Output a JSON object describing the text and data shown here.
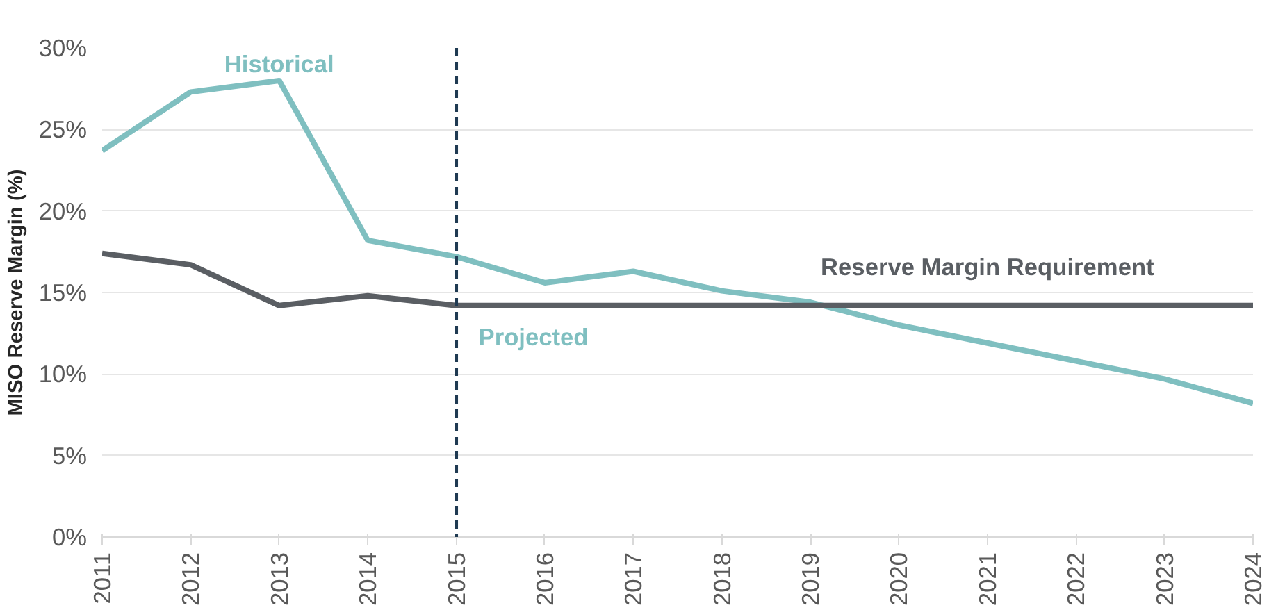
{
  "chart_data": {
    "type": "line",
    "ylabel": "MISO Reserve Margin (%)",
    "x": [
      2011,
      2012,
      2013,
      2014,
      2015,
      2016,
      2017,
      2018,
      2019,
      2020,
      2021,
      2022,
      2023,
      2024
    ],
    "series": [
      {
        "color": "#7fbfc0",
        "values": [
          23.7,
          27.3,
          28.0,
          18.2,
          17.2,
          15.6,
          16.3,
          15.1,
          14.4,
          13.0,
          11.9,
          10.8,
          9.7,
          8.2
        ]
      },
      {
        "name": "Reserve Margin Requirement",
        "color": "#5a5e63",
        "values": [
          17.4,
          16.7,
          14.2,
          14.8,
          14.2,
          14.2,
          14.2,
          14.2,
          14.2,
          14.2,
          14.2,
          14.2,
          14.2,
          14.2
        ]
      }
    ],
    "annotations": [
      "Historical",
      "Projected"
    ],
    "ref_lines": [
      {
        "axis": "x",
        "value": 2015,
        "color": "#1f3a52",
        "line_style": "dashed"
      }
    ],
    "xlim": [
      2011,
      2024
    ],
    "xticks": [
      2011,
      2012,
      2013,
      2014,
      2015,
      2016,
      2017,
      2018,
      2019,
      2020,
      2021,
      2022,
      2023,
      2024
    ],
    "ylim": [
      0,
      30
    ],
    "yticks": [
      {
        "value": 0,
        "label": "0%"
      },
      {
        "value": 5,
        "label": "5%"
      },
      {
        "value": 10,
        "label": "10%"
      },
      {
        "value": 15,
        "label": "15%"
      },
      {
        "value": 20,
        "label": "20%"
      },
      {
        "value": 25,
        "label": "25%"
      },
      {
        "value": 30,
        "label": "30%"
      }
    ],
    "grid": "y",
    "marker": "none",
    "line_style": "solid"
  }
}
